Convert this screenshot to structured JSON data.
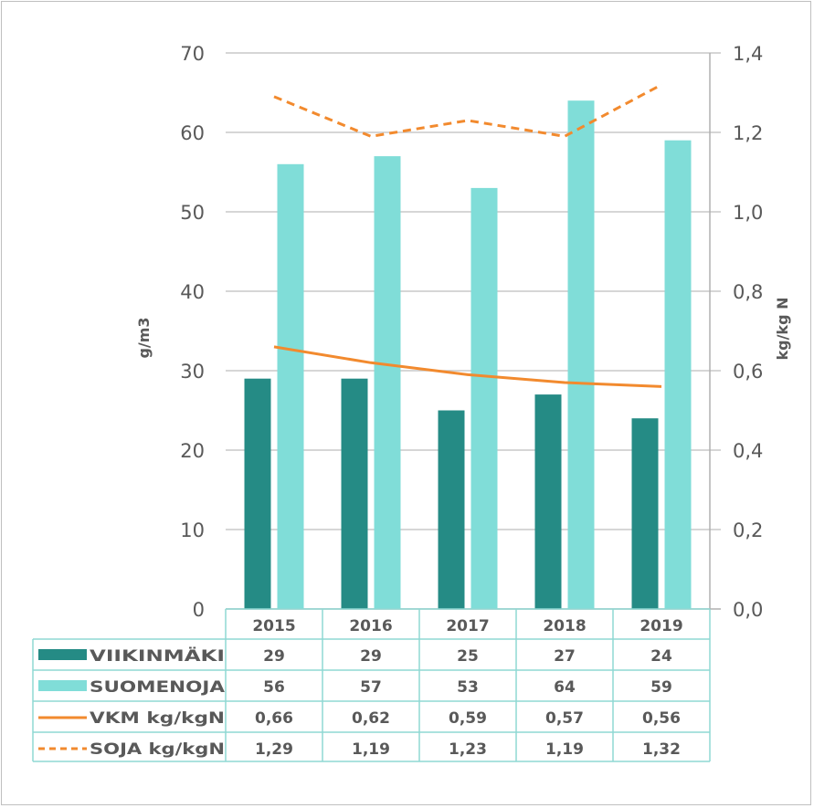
{
  "chart_data": {
    "type": "bar",
    "categories": [
      "2015",
      "2016",
      "2017",
      "2018",
      "2019"
    ],
    "series": [
      {
        "name": "VIIKINMÄKI",
        "kind": "bar",
        "axis": "left",
        "color": "#258B85",
        "values": [
          29,
          29,
          25,
          27,
          24
        ],
        "labels": [
          "29",
          "29",
          "25",
          "27",
          "24"
        ]
      },
      {
        "name": "SUOMENOJA",
        "kind": "bar",
        "axis": "left",
        "color": "#80DDD8",
        "values": [
          56,
          57,
          53,
          64,
          59
        ],
        "labels": [
          "56",
          "57",
          "53",
          "64",
          "59"
        ]
      },
      {
        "name": "VKM kg/kgN",
        "kind": "line",
        "style": "solid",
        "axis": "right",
        "color": "#F28A2E",
        "values": [
          0.66,
          0.62,
          0.59,
          0.57,
          0.56
        ],
        "labels": [
          "0,66",
          "0,62",
          "0,59",
          "0,57",
          "0,56"
        ]
      },
      {
        "name": "SOJA kg/kgN",
        "kind": "line",
        "style": "dashed",
        "axis": "right",
        "color": "#F28A2E",
        "values": [
          1.29,
          1.19,
          1.23,
          1.19,
          1.32
        ],
        "labels": [
          "1,29",
          "1,19",
          "1,23",
          "1,19",
          "1,32"
        ]
      }
    ],
    "ylabel": "g/m3",
    "y2label": "kg/kg N",
    "ylim": [
      0,
      70
    ],
    "y2lim": [
      0,
      1.4
    ],
    "yticks": [
      "0",
      "10",
      "20",
      "30",
      "40",
      "50",
      "60",
      "70"
    ],
    "y2ticks": [
      "0,0",
      "0,2",
      "0,4",
      "0,6",
      "0,8",
      "1,0",
      "1,2",
      "1,4"
    ],
    "grid": true,
    "legend": "data-table-bottom"
  }
}
